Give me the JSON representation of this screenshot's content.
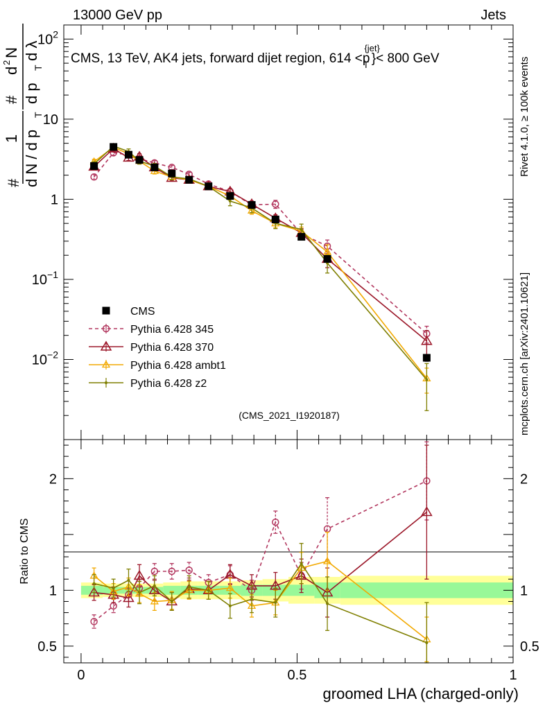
{
  "header": {
    "left": "13000 GeV pp",
    "right": "Jets",
    "title_pre": "CMS, 13 TeV, AK4 jets, forward dijet region, 614 <p",
    "title_sup": "{jet}",
    "title_sub": "T",
    "title_post": "}< 800 GeV",
    "analysis_id": "(CMS_2021_I1920187)",
    "side_rivet": "Rivet 4.1.0, ≥ 100k events",
    "side_mcplots": "mcplots.cern.ch [arXiv:2401.10621]"
  },
  "chart_data": [
    {
      "type": "line",
      "panel": "main",
      "yscale": "log",
      "ylim": [
        0.001,
        150
      ],
      "xlim": [
        -0.04,
        1.0
      ],
      "ylabel_parts": [
        "1",
        "d N / d p",
        "T",
        "#",
        "d",
        "2",
        "N",
        "d p",
        "T",
        "d λ",
        "#"
      ],
      "yticks": [
        {
          "value": 0.01,
          "base": "10",
          "exp": "−2"
        },
        {
          "value": 0.1,
          "base": "10",
          "exp": "−1"
        },
        {
          "value": 1,
          "base": "1",
          "exp": ""
        },
        {
          "value": 10,
          "base": "10",
          "exp": ""
        },
        {
          "value": 100,
          "base": "10",
          "exp": "2"
        }
      ],
      "series": [
        {
          "name": "CMS",
          "color": "#000000",
          "marker": "square",
          "dash": "none",
          "x": [
            0.03,
            0.075,
            0.11,
            0.135,
            0.17,
            0.21,
            0.25,
            0.295,
            0.345,
            0.395,
            0.45,
            0.51,
            0.57,
            0.8
          ],
          "y": [
            2.6,
            4.5,
            3.6,
            3.1,
            2.5,
            2.1,
            1.75,
            1.45,
            1.1,
            0.85,
            0.56,
            0.34,
            0.18,
            0.0105
          ],
          "err": [
            0.1,
            0.15,
            0.12,
            0.1,
            0.08,
            0.07,
            0.06,
            0.05,
            0.05,
            0.04,
            0.03,
            0.02,
            0.015,
            0.001
          ]
        },
        {
          "name": "Pythia 6.428 345",
          "color": "#b2365e",
          "marker": "circle",
          "dash": "5,4",
          "x": [
            0.03,
            0.075,
            0.11,
            0.135,
            0.17,
            0.21,
            0.25,
            0.295,
            0.345,
            0.395,
            0.45,
            0.51,
            0.57,
            0.8
          ],
          "y": [
            1.9,
            3.8,
            3.6,
            3.2,
            2.85,
            2.5,
            2.05,
            1.55,
            1.25,
            0.85,
            0.87,
            0.37,
            0.26,
            0.021
          ],
          "err": [
            0.15,
            0.25,
            0.2,
            0.2,
            0.18,
            0.15,
            0.12,
            0.1,
            0.1,
            0.08,
            0.1,
            0.05,
            0.05,
            0.005
          ]
        },
        {
          "name": "Pythia 6.428 370",
          "color": "#9b1628",
          "marker": "triangle",
          "dash": "none",
          "x": [
            0.03,
            0.075,
            0.11,
            0.135,
            0.17,
            0.21,
            0.25,
            0.295,
            0.345,
            0.395,
            0.45,
            0.51,
            0.57,
            0.8
          ],
          "y": [
            2.55,
            4.3,
            3.3,
            3.4,
            2.5,
            1.85,
            1.75,
            1.45,
            1.25,
            0.87,
            0.58,
            0.38,
            0.18,
            0.017
          ],
          "err": [
            0.2,
            0.3,
            0.25,
            0.3,
            0.2,
            0.15,
            0.12,
            0.1,
            0.1,
            0.08,
            0.06,
            0.05,
            0.04,
            0.006
          ]
        },
        {
          "name": "Pythia 6.428 ambt1",
          "color": "#f2a900",
          "marker": "triangle-small",
          "dash": "none",
          "x": [
            0.03,
            0.075,
            0.11,
            0.135,
            0.17,
            0.21,
            0.25,
            0.295,
            0.345,
            0.395,
            0.45,
            0.51,
            0.57,
            0.8
          ],
          "y": [
            2.95,
            4.45,
            3.7,
            3.0,
            2.25,
            1.9,
            1.75,
            1.45,
            1.1,
            0.72,
            0.5,
            0.4,
            0.22,
            0.0058
          ],
          "err": [
            0.2,
            0.3,
            0.25,
            0.25,
            0.18,
            0.15,
            0.12,
            0.1,
            0.09,
            0.07,
            0.06,
            0.05,
            0.05,
            0.002
          ]
        },
        {
          "name": "Pythia 6.428 z2",
          "color": "#7f7f00",
          "marker": "dot",
          "dash": "none",
          "x": [
            0.03,
            0.075,
            0.11,
            0.135,
            0.17,
            0.21,
            0.25,
            0.295,
            0.345,
            0.395,
            0.45,
            0.51,
            0.57,
            0.8
          ],
          "y": [
            2.75,
            4.6,
            3.95,
            3.0,
            2.6,
            1.9,
            1.8,
            1.45,
            0.95,
            0.78,
            0.5,
            0.42,
            0.16,
            0.0056
          ],
          "err": [
            0.2,
            0.35,
            0.3,
            0.25,
            0.2,
            0.15,
            0.12,
            0.1,
            0.12,
            0.1,
            0.07,
            0.07,
            0.04,
            0.0033
          ]
        }
      ]
    },
    {
      "type": "line",
      "panel": "ratio",
      "ylabel": "Ratio to CMS",
      "ylim": [
        0.35,
        2.35
      ],
      "xlim": [
        -0.04,
        1.0
      ],
      "xlabel": "groomed LHA (charged-only)",
      "xticks": [
        {
          "value": 0,
          "label": "0"
        },
        {
          "value": 0.5,
          "label": "0.5"
        },
        {
          "value": 1,
          "label": "1"
        }
      ],
      "yticks": [
        {
          "value": 0.5,
          "label": "0.5"
        },
        {
          "value": 1,
          "label": "1"
        },
        {
          "value": 2,
          "label": "2"
        }
      ],
      "bands": {
        "edges": [
          0.0,
          0.05,
          0.1,
          0.125,
          0.15,
          0.19,
          0.23,
          0.27,
          0.32,
          0.37,
          0.42,
          0.48,
          0.54,
          0.6,
          1.0
        ],
        "inner": [
          0.04,
          0.03,
          0.03,
          0.03,
          0.03,
          0.04,
          0.04,
          0.04,
          0.04,
          0.05,
          0.05,
          0.05,
          0.07,
          0.07
        ],
        "outer": [
          0.07,
          0.06,
          0.06,
          0.06,
          0.06,
          0.07,
          0.08,
          0.08,
          0.08,
          0.09,
          0.1,
          0.12,
          0.12,
          0.13
        ],
        "inner_color": "#98f898",
        "outer_color": "#ffff99"
      },
      "series": [
        {
          "name": "Pythia 6.428 345",
          "color": "#b2365e",
          "marker": "circle",
          "dash": "5,4",
          "x": [
            0.03,
            0.075,
            0.11,
            0.135,
            0.17,
            0.21,
            0.25,
            0.295,
            0.345,
            0.395,
            0.45,
            0.51,
            0.57,
            0.8
          ],
          "y": [
            0.72,
            0.86,
            0.96,
            1.02,
            1.17,
            1.17,
            1.18,
            1.07,
            1.14,
            1.0,
            1.61,
            1.13,
            1.55,
            1.98
          ],
          "err": [
            0.06,
            0.06,
            0.06,
            0.06,
            0.07,
            0.07,
            0.07,
            0.07,
            0.08,
            0.09,
            0.1,
            0.12,
            0.28,
            0.35
          ]
        },
        {
          "name": "Pythia 6.428 370",
          "color": "#9b1628",
          "marker": "triangle",
          "dash": "none",
          "x": [
            0.03,
            0.075,
            0.11,
            0.135,
            0.17,
            0.21,
            0.25,
            0.295,
            0.345,
            0.395,
            0.45,
            0.51,
            0.57,
            0.8
          ],
          "y": [
            0.98,
            0.96,
            0.93,
            1.13,
            1.0,
            0.9,
            1.01,
            1.0,
            1.14,
            1.04,
            1.04,
            1.13,
            0.98,
            1.7
          ],
          "err": [
            0.07,
            0.07,
            0.08,
            0.1,
            0.09,
            0.08,
            0.08,
            0.08,
            0.09,
            0.1,
            0.12,
            0.15,
            0.22,
            0.6
          ]
        },
        {
          "name": "Pythia 6.428 ambt1",
          "color": "#f2a900",
          "marker": "triangle-small",
          "dash": "none",
          "x": [
            0.03,
            0.075,
            0.11,
            0.135,
            0.17,
            0.21,
            0.25,
            0.295,
            0.345,
            0.395,
            0.45,
            0.51,
            0.57,
            0.8
          ],
          "y": [
            1.13,
            0.99,
            1.03,
            0.97,
            0.9,
            0.91,
            1.0,
            1.0,
            1.02,
            0.86,
            0.89,
            1.2,
            1.26,
            0.56
          ],
          "err": [
            0.07,
            0.07,
            0.08,
            0.08,
            0.08,
            0.08,
            0.08,
            0.08,
            0.09,
            0.1,
            0.11,
            0.14,
            0.26,
            0.2
          ]
        },
        {
          "name": "Pythia 6.428 z2",
          "color": "#7f7f00",
          "marker": "dot",
          "dash": "none",
          "x": [
            0.03,
            0.075,
            0.11,
            0.135,
            0.17,
            0.21,
            0.25,
            0.295,
            0.345,
            0.395,
            0.45,
            0.51,
            0.57,
            0.8
          ],
          "y": [
            1.06,
            1.02,
            1.09,
            0.98,
            1.04,
            0.9,
            1.03,
            1.0,
            0.86,
            0.92,
            0.89,
            1.24,
            0.88,
            0.53
          ],
          "err": [
            0.08,
            0.08,
            0.1,
            0.1,
            0.09,
            0.08,
            0.1,
            0.08,
            0.11,
            0.12,
            0.13,
            0.18,
            0.24,
            0.36
          ]
        }
      ]
    }
  ]
}
